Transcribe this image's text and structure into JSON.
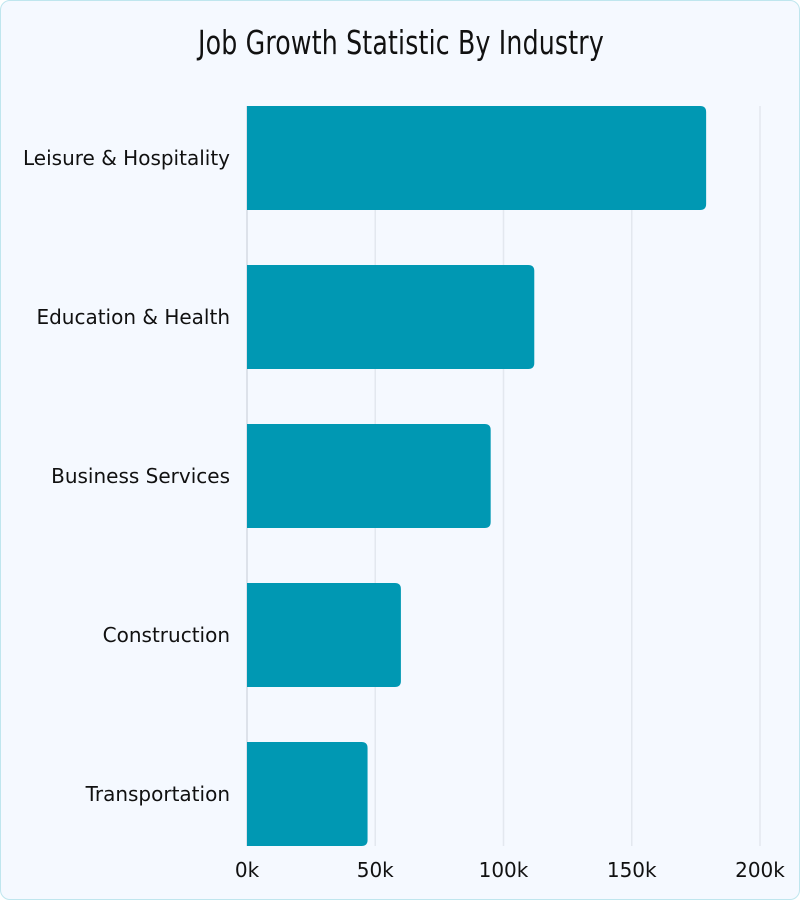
{
  "chart_data": {
    "type": "bar",
    "orientation": "horizontal",
    "title": "Job Growth Statistic By Industry",
    "categories": [
      "Leisure & Hospitality",
      "Education & Health",
      "Business Services",
      "Construction",
      "Transportation"
    ],
    "values": [
      179000,
      112000,
      95000,
      60000,
      47000
    ],
    "xlim": [
      0,
      200000
    ],
    "xticks": [
      0,
      50000,
      100000,
      150000,
      200000
    ],
    "xtick_labels": [
      "0k",
      "50k",
      "100k",
      "150k",
      "200k"
    ],
    "xlabel": "",
    "ylabel": "",
    "grid": "vertical",
    "bar_color": "#0098b3"
  }
}
